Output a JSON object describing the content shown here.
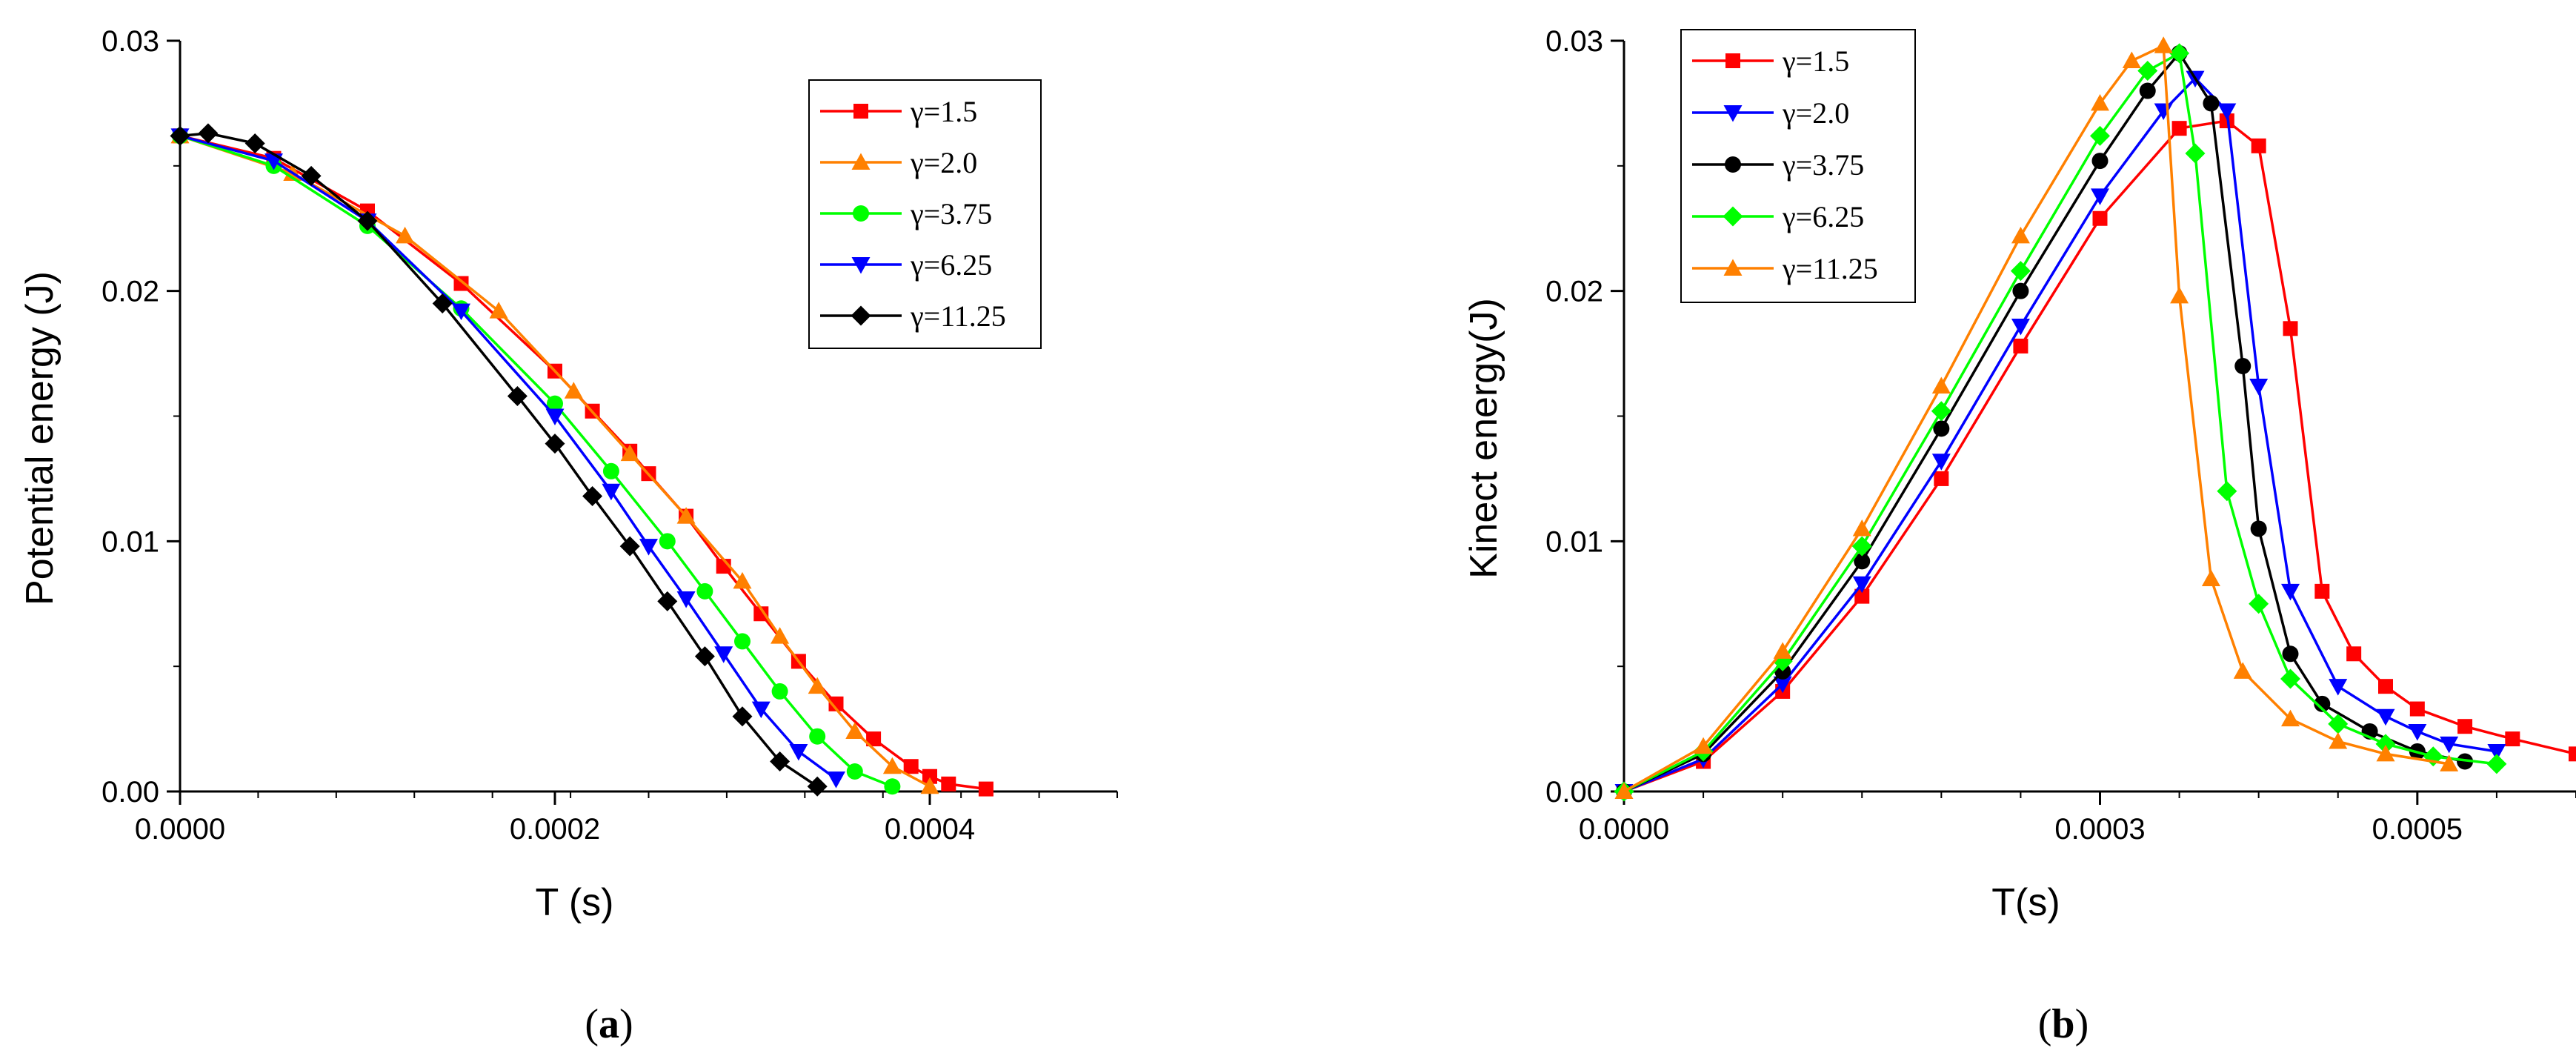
{
  "chart_data": [
    {
      "type": "line",
      "panel_label": "a",
      "xlabel": "T (s)",
      "ylabel": "Potential energy (J)",
      "xlim": [
        0,
        0.0005
      ],
      "ylim": [
        0,
        0.03
      ],
      "xticks": [
        0,
        0.0002,
        0.0004
      ],
      "xtick_labels": [
        "0.0000",
        "0.0002",
        "0.0004"
      ],
      "yticks": [
        0,
        0.01,
        0.02,
        0.03
      ],
      "ytick_labels": [
        "0.00",
        "0.01",
        "0.02",
        "0.03"
      ],
      "legend_position": "top-right",
      "series": [
        {
          "name": "γ=1.5",
          "color": "#ff0000",
          "marker": "square",
          "x": [
            0,
            5e-05,
            0.0001,
            0.00015,
            0.0002,
            0.00022,
            0.00024,
            0.00025,
            0.00027,
            0.00029,
            0.00031,
            0.00033,
            0.00035,
            0.00037,
            0.00039,
            0.0004,
            0.00041,
            0.00043
          ],
          "y": [
            0.0262,
            0.0253,
            0.0232,
            0.0203,
            0.0168,
            0.0152,
            0.0136,
            0.0127,
            0.011,
            0.009,
            0.0071,
            0.0052,
            0.0035,
            0.0021,
            0.001,
            0.0006,
            0.0003,
            0.0001
          ]
        },
        {
          "name": "γ=2.0",
          "color": "#ff8000",
          "marker": "triangle-up",
          "x": [
            0,
            6e-05,
            0.00012,
            0.00017,
            0.00021,
            0.00024,
            0.00027,
            0.0003,
            0.00032,
            0.00034,
            0.00036,
            0.00038,
            0.0004
          ],
          "y": [
            0.0262,
            0.0247,
            0.0222,
            0.0192,
            0.016,
            0.0135,
            0.011,
            0.0084,
            0.0062,
            0.0042,
            0.0024,
            0.001,
            0.0002
          ]
        },
        {
          "name": "γ=3.75",
          "color": "#00ff00",
          "marker": "circle",
          "x": [
            0,
            5e-05,
            0.0001,
            0.00015,
            0.0002,
            0.00023,
            0.00026,
            0.00028,
            0.0003,
            0.00032,
            0.00034,
            0.00036,
            0.00038
          ],
          "y": [
            0.0262,
            0.025,
            0.0226,
            0.0193,
            0.0155,
            0.0128,
            0.01,
            0.008,
            0.006,
            0.004,
            0.0022,
            0.0008,
            0.0002
          ]
        },
        {
          "name": "γ=6.25",
          "color": "#0000ff",
          "marker": "triangle-down",
          "x": [
            0,
            5e-05,
            0.0001,
            0.00015,
            0.0002,
            0.00023,
            0.00025,
            0.00027,
            0.00029,
            0.00031,
            0.00033,
            0.00035
          ],
          "y": [
            0.0262,
            0.0252,
            0.0228,
            0.0192,
            0.015,
            0.012,
            0.0098,
            0.0077,
            0.0055,
            0.0033,
            0.0016,
            0.0005
          ]
        },
        {
          "name": "γ=11.25",
          "color": "#000000",
          "marker": "diamond",
          "x": [
            0,
            1.5e-05,
            4e-05,
            7e-05,
            0.0001,
            0.00014,
            0.00018,
            0.0002,
            0.00022,
            0.00024,
            0.00026,
            0.00028,
            0.0003,
            0.00032,
            0.00034
          ],
          "y": [
            0.0262,
            0.0263,
            0.0259,
            0.0246,
            0.0228,
            0.0195,
            0.0158,
            0.0139,
            0.0118,
            0.0098,
            0.0076,
            0.0054,
            0.003,
            0.0012,
            0.0002
          ]
        }
      ]
    },
    {
      "type": "line",
      "panel_label": "b",
      "xlabel": "T(s)",
      "ylabel": "Kinect energy(J)",
      "xlim": [
        0,
        0.0006
      ],
      "ylim": [
        0,
        0.03
      ],
      "xticks": [
        0,
        0.0003,
        0.0005
      ],
      "xtick_labels": [
        "0.0000",
        "0.0003",
        "0.0005"
      ],
      "yticks": [
        0,
        0.01,
        0.02,
        0.03
      ],
      "ytick_labels": [
        "0.00",
        "0.01",
        "0.02",
        "0.03"
      ],
      "legend_position": "top-left",
      "series": [
        {
          "name": "γ=1.5",
          "color": "#ff0000",
          "marker": "square",
          "x": [
            0,
            5e-05,
            0.0001,
            0.00015,
            0.0002,
            0.00025,
            0.0003,
            0.00035,
            0.00038,
            0.0004,
            0.00042,
            0.00044,
            0.00046,
            0.00048,
            0.0005,
            0.00053,
            0.00056,
            0.0006
          ],
          "y": [
            0,
            0.0012,
            0.004,
            0.0078,
            0.0125,
            0.0178,
            0.0229,
            0.0265,
            0.0268,
            0.0258,
            0.0185,
            0.008,
            0.0055,
            0.0042,
            0.0033,
            0.0026,
            0.0021,
            0.0015
          ]
        },
        {
          "name": "γ=2.0",
          "color": "#0000ff",
          "marker": "triangle-down",
          "x": [
            0,
            5e-05,
            0.0001,
            0.00015,
            0.0002,
            0.00025,
            0.0003,
            0.00034,
            0.00036,
            0.00038,
            0.0004,
            0.00042,
            0.00045,
            0.00048,
            0.0005,
            0.00052,
            0.00055
          ],
          "y": [
            0,
            0.0013,
            0.0043,
            0.0083,
            0.0132,
            0.0186,
            0.0238,
            0.0272,
            0.0285,
            0.0272,
            0.0162,
            0.008,
            0.0042,
            0.003,
            0.0024,
            0.0019,
            0.0016
          ]
        },
        {
          "name": "γ=3.75",
          "color": "#000000",
          "marker": "circle",
          "x": [
            0,
            5e-05,
            0.0001,
            0.00015,
            0.0002,
            0.00025,
            0.0003,
            0.00033,
            0.00035,
            0.00037,
            0.00039,
            0.0004,
            0.00042,
            0.00044,
            0.00047,
            0.0005,
            0.00053
          ],
          "y": [
            0,
            0.0015,
            0.0048,
            0.0092,
            0.0145,
            0.02,
            0.0252,
            0.028,
            0.0295,
            0.0275,
            0.017,
            0.0105,
            0.0055,
            0.0035,
            0.0024,
            0.0016,
            0.0012
          ]
        },
        {
          "name": "γ=6.25",
          "color": "#00ff00",
          "marker": "diamond",
          "x": [
            0,
            5e-05,
            0.0001,
            0.00015,
            0.0002,
            0.00025,
            0.0003,
            0.00033,
            0.00035,
            0.00036,
            0.00038,
            0.0004,
            0.00042,
            0.00045,
            0.00048,
            0.00051,
            0.00055
          ],
          "y": [
            0,
            0.0016,
            0.0052,
            0.0098,
            0.0152,
            0.0208,
            0.0262,
            0.0288,
            0.0295,
            0.0255,
            0.012,
            0.0075,
            0.0045,
            0.0027,
            0.0019,
            0.0014,
            0.0011
          ]
        },
        {
          "name": "γ=11.25",
          "color": "#ff8000",
          "marker": "triangle-up",
          "x": [
            0,
            5e-05,
            0.0001,
            0.00015,
            0.0002,
            0.00025,
            0.0003,
            0.00032,
            0.00034,
            0.00035,
            0.00037,
            0.00039,
            0.00042,
            0.00045,
            0.00048,
            0.00052
          ],
          "y": [
            0,
            0.0018,
            0.0056,
            0.0105,
            0.0162,
            0.0222,
            0.0275,
            0.0292,
            0.0298,
            0.0198,
            0.0085,
            0.0048,
            0.0029,
            0.002,
            0.0015,
            0.0011
          ]
        }
      ]
    }
  ]
}
